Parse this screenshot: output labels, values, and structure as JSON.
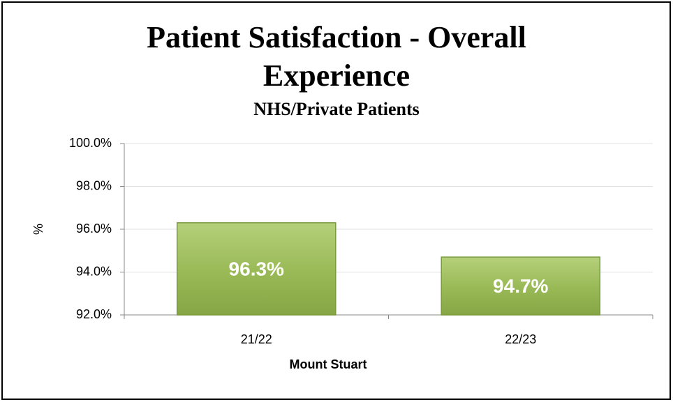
{
  "chart_data": {
    "type": "bar",
    "title": "Patient Satisfaction  - Overall Experience",
    "subtitle": "NHS/Private Patients",
    "x_label": "Mount Stuart",
    "y_label": "%",
    "categories": [
      "21/22",
      "22/23"
    ],
    "values": [
      96.3,
      94.7
    ],
    "value_labels": [
      "96.3%",
      "94.7%"
    ],
    "color": "#9bbb59",
    "ylim": [
      92,
      100
    ],
    "yticks": [
      {
        "value": 92,
        "label": "92.0%"
      },
      {
        "value": 94,
        "label": "94.0%"
      },
      {
        "value": 96,
        "label": "96.0%"
      },
      {
        "value": 98,
        "label": "98.0%"
      },
      {
        "value": 100,
        "label": "100.0%"
      }
    ],
    "grid": true
  }
}
